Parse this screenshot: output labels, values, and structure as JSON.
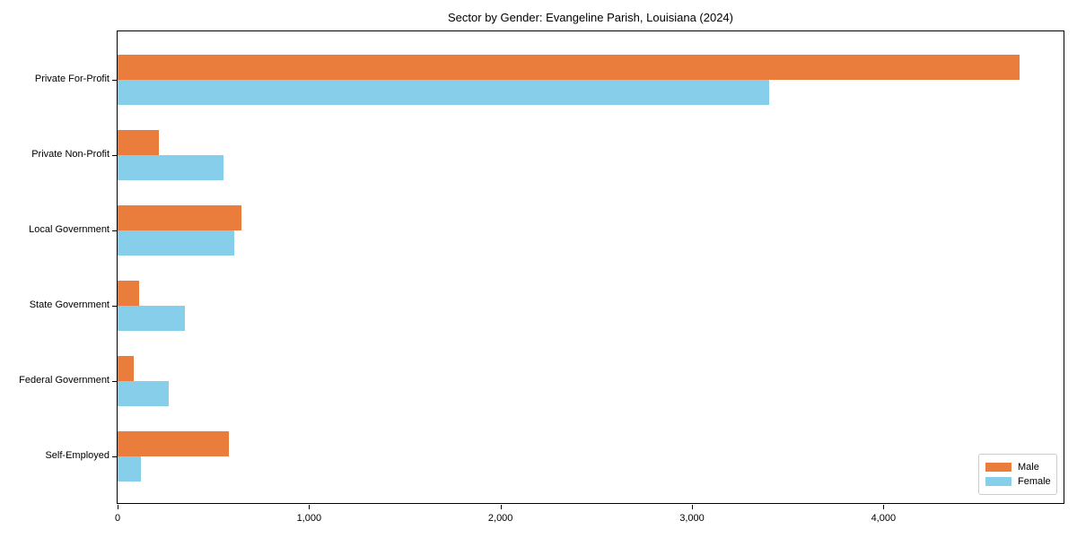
{
  "chart_data": {
    "type": "bar",
    "orientation": "horizontal",
    "title": "Sector by Gender: Evangeline Parish, Louisiana (2024)",
    "categories": [
      "Private For-Profit",
      "Private Non-Profit",
      "Local Government",
      "State Government",
      "Federal Government",
      "Self-Employed"
    ],
    "series": [
      {
        "name": "Male",
        "color": "#eb7d3c",
        "values": [
          4710,
          215,
          645,
          110,
          85,
          580
        ]
      },
      {
        "name": "Female",
        "color": "#87ceeb",
        "values": [
          3405,
          555,
          610,
          350,
          265,
          120
        ]
      }
    ],
    "xlabel": "",
    "ylabel": "",
    "xlim": [
      0,
      4950
    ],
    "x_ticks": [
      0,
      1000,
      2000,
      3000,
      4000
    ],
    "x_tick_labels": [
      "0",
      "1,000",
      "2,000",
      "3,000",
      "4,000"
    ],
    "grid": false,
    "legend": {
      "position": "lower-right",
      "entries": [
        "Male",
        "Female"
      ]
    }
  }
}
